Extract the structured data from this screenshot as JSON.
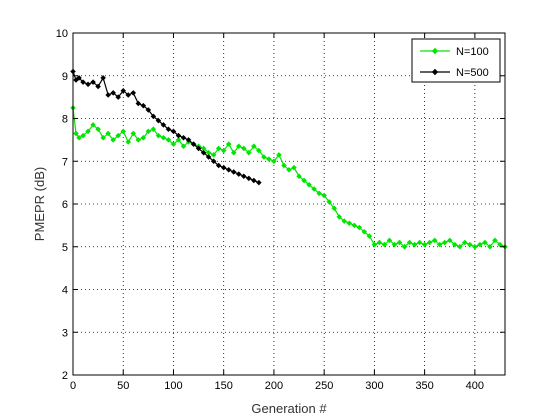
{
  "chart_data": {
    "type": "line",
    "title": "",
    "xlabel": "Generation #",
    "ylabel": "PMEPR (dB)",
    "xlim": [
      0,
      430
    ],
    "ylim": [
      2,
      10
    ],
    "xticks": [
      0,
      50,
      100,
      150,
      200,
      250,
      300,
      350,
      400
    ],
    "yticks": [
      2,
      3,
      4,
      5,
      6,
      7,
      8,
      9,
      10
    ],
    "grid": true,
    "legend_position": "top-right",
    "series": [
      {
        "name": "N=100",
        "color": "#00e600",
        "marker": "diamond",
        "x": [
          0,
          3,
          6,
          10,
          15,
          20,
          25,
          30,
          35,
          40,
          45,
          50,
          55,
          60,
          65,
          70,
          75,
          80,
          85,
          90,
          95,
          100,
          105,
          110,
          115,
          120,
          125,
          130,
          135,
          140,
          145,
          150,
          155,
          160,
          165,
          170,
          175,
          180,
          185,
          190,
          195,
          200,
          205,
          210,
          215,
          220,
          225,
          230,
          235,
          240,
          245,
          250,
          255,
          260,
          265,
          270,
          275,
          280,
          285,
          290,
          295,
          300,
          305,
          310,
          315,
          320,
          325,
          330,
          335,
          340,
          345,
          350,
          355,
          360,
          365,
          370,
          375,
          380,
          385,
          390,
          395,
          400,
          405,
          410,
          415,
          420,
          425,
          430
        ],
        "y": [
          8.25,
          7.65,
          7.55,
          7.6,
          7.7,
          7.85,
          7.75,
          7.55,
          7.65,
          7.5,
          7.6,
          7.7,
          7.45,
          7.65,
          7.5,
          7.55,
          7.7,
          7.75,
          7.6,
          7.55,
          7.5,
          7.4,
          7.5,
          7.35,
          7.45,
          7.4,
          7.35,
          7.3,
          7.2,
          7.15,
          7.3,
          7.25,
          7.4,
          7.2,
          7.35,
          7.3,
          7.2,
          7.35,
          7.25,
          7.1,
          7.05,
          7.0,
          7.15,
          6.9,
          6.8,
          6.85,
          6.65,
          6.55,
          6.45,
          6.35,
          6.25,
          6.2,
          6.05,
          5.9,
          5.7,
          5.6,
          5.55,
          5.5,
          5.45,
          5.35,
          5.25,
          5.05,
          5.1,
          5.05,
          5.15,
          5.05,
          5.1,
          5.0,
          5.1,
          5.05,
          5.1,
          5.05,
          5.1,
          5.15,
          5.05,
          5.1,
          5.15,
          5.05,
          5.0,
          5.1,
          5.05,
          5.0,
          5.05,
          5.1,
          5.0,
          5.15,
          5.05,
          5.0
        ]
      },
      {
        "name": "N=500",
        "color": "#000000",
        "marker": "diamond",
        "x": [
          0,
          3,
          6,
          10,
          15,
          20,
          25,
          30,
          35,
          40,
          45,
          50,
          55,
          60,
          65,
          70,
          75,
          80,
          85,
          90,
          95,
          100,
          105,
          110,
          115,
          120,
          125,
          130,
          135,
          140,
          145,
          150,
          155,
          160,
          165,
          170,
          175,
          180,
          185
        ],
        "y": [
          9.1,
          8.9,
          8.95,
          8.85,
          8.8,
          8.85,
          8.75,
          8.95,
          8.55,
          8.6,
          8.5,
          8.65,
          8.55,
          8.6,
          8.35,
          8.3,
          8.2,
          8.05,
          7.95,
          7.85,
          7.75,
          7.7,
          7.6,
          7.55,
          7.5,
          7.4,
          7.3,
          7.2,
          7.1,
          7.0,
          6.9,
          6.85,
          6.8,
          6.75,
          6.7,
          6.65,
          6.6,
          6.55,
          6.5
        ]
      }
    ]
  }
}
